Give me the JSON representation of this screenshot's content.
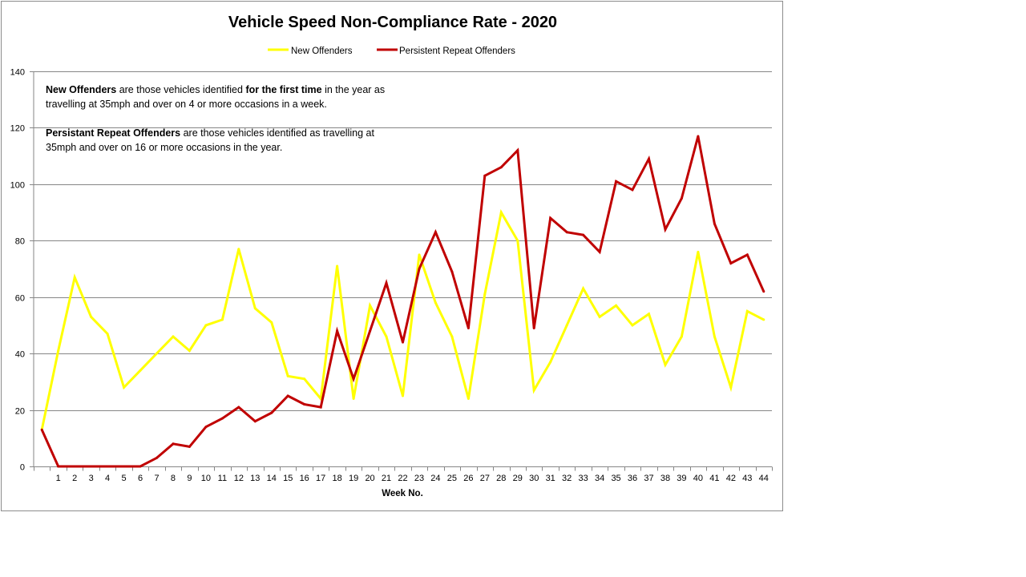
{
  "chart_data": {
    "type": "line",
    "title": "Vehicle Speed Non-Compliance Rate - 2020",
    "xlabel": "Week No.",
    "ylabel": "",
    "ylim": [
      0,
      140
    ],
    "yticks": [
      0,
      20,
      40,
      60,
      80,
      100,
      120,
      140
    ],
    "grid": true,
    "legend_position": "top",
    "categories": [
      "",
      "1",
      "2",
      "3",
      "4",
      "5",
      "6",
      "7",
      "8",
      "9",
      "10",
      "11",
      "12",
      "13",
      "14",
      "15",
      "16",
      "17",
      "18",
      "19",
      "20",
      "21",
      "22",
      "23",
      "24",
      "25",
      "26",
      "27",
      "28",
      "29",
      "30",
      "31",
      "32",
      "33",
      "34",
      "35",
      "36",
      "37",
      "38",
      "39",
      "40",
      "41",
      "42",
      "43",
      "44"
    ],
    "series": [
      {
        "name": "New Offenders",
        "color": "#ffff00",
        "values": [
          13,
          41,
          67,
          53,
          47,
          28,
          34,
          40,
          46,
          41,
          50,
          52,
          77,
          56,
          51,
          32,
          31,
          24,
          71,
          24,
          57,
          46,
          25,
          75,
          58,
          46,
          24,
          61,
          90,
          80,
          27,
          37,
          50,
          63,
          53,
          57,
          50,
          54,
          36,
          46,
          76,
          46,
          28,
          55,
          52
        ]
      },
      {
        "name": "Persistent Repeat Offenders",
        "color": "#c00000",
        "values": [
          13,
          0,
          0,
          0,
          0,
          0,
          0,
          3,
          8,
          7,
          14,
          17,
          21,
          16,
          19,
          25,
          22,
          21,
          48,
          31,
          48,
          65,
          44,
          70,
          83,
          69,
          49,
          103,
          106,
          112,
          49,
          88,
          83,
          82,
          76,
          101,
          98,
          109,
          84,
          95,
          117,
          86,
          72,
          75,
          62
        ]
      }
    ],
    "annotations": [
      {
        "lines": [
          [
            {
              "text": "New Offenders",
              "bold": true
            },
            {
              "text": " are those vehicles identified ",
              "bold": false
            },
            {
              "text": "for the first time",
              "bold": true
            },
            {
              "text": " in the year as",
              "bold": false
            }
          ],
          [
            {
              "text": "travelling at 35mph and over on 4 or more occasions in a week.",
              "bold": false
            }
          ]
        ]
      },
      {
        "lines": [
          [
            {
              "text": "Persistant Repeat Offenders",
              "bold": true
            },
            {
              "text": " are those vehicles identified as travelling at",
              "bold": false
            }
          ],
          [
            {
              "text": "35mph and over on 16 or more occasions in the year.",
              "bold": false
            }
          ]
        ]
      }
    ]
  }
}
